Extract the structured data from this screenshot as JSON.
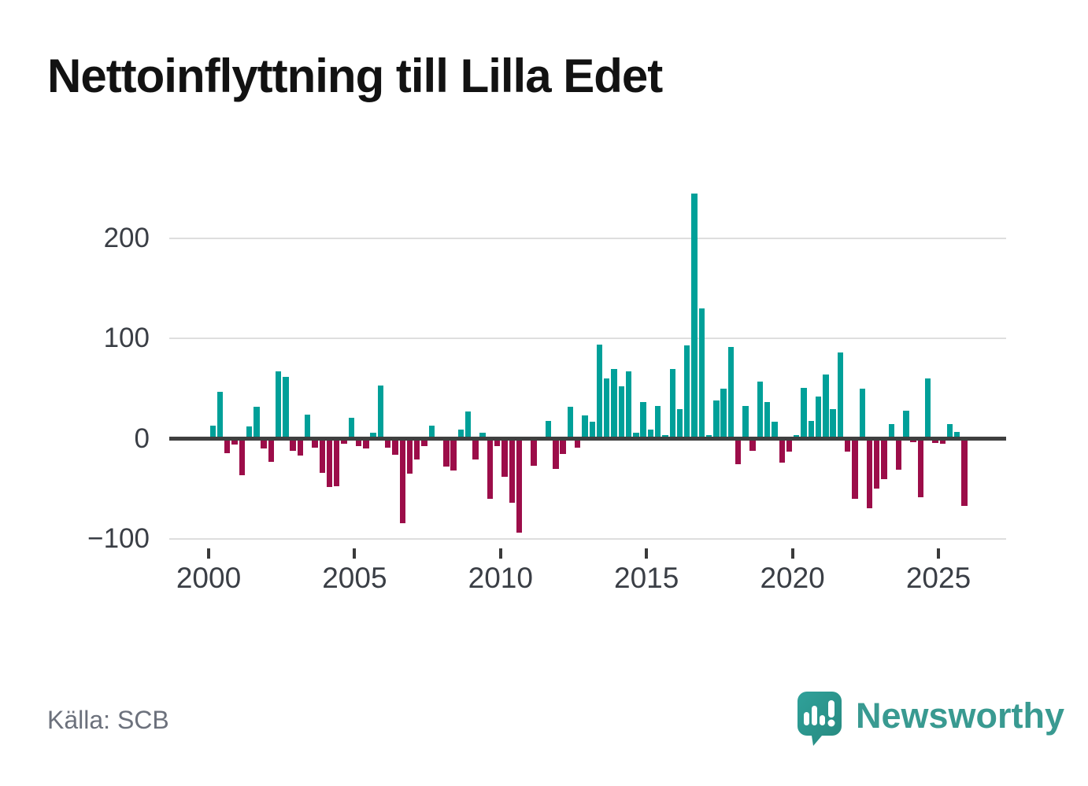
{
  "title": "Nettoinflyttning till Lilla Edet",
  "source": "Källa: SCB",
  "logo": {
    "text": "Newsworthy",
    "badge_icon": "bar-chart-exclamation-speech-bubble"
  },
  "chart_data": {
    "type": "bar",
    "title": "Nettoinflyttning till Lilla Edet",
    "start_year": 2000,
    "frequency": "quarterly",
    "values": [
      13,
      47,
      -14,
      -6,
      -36,
      12,
      32,
      -10,
      -23,
      67,
      62,
      -12,
      -17,
      24,
      -9,
      -34,
      -48,
      -47,
      -5,
      21,
      -7,
      -10,
      6,
      53,
      -9,
      -16,
      -84,
      -35,
      -21,
      -7,
      13,
      0,
      -28,
      -32,
      9,
      27,
      -21,
      6,
      -60,
      -7,
      -38,
      -64,
      -94,
      2,
      -27,
      1,
      18,
      -30,
      -15,
      32,
      -9,
      23,
      17,
      94,
      60,
      70,
      52,
      67,
      6,
      37,
      9,
      33,
      4,
      70,
      30,
      93,
      245,
      130,
      4,
      38,
      50,
      92,
      -25,
      33,
      -12,
      57,
      37,
      17,
      -24,
      -13,
      4,
      51,
      18,
      42,
      64,
      30,
      86,
      -13,
      -60,
      50,
      -69,
      -50,
      -40,
      15,
      -31,
      28,
      -3,
      -58,
      60,
      -4,
      -5,
      15,
      7,
      -67
    ],
    "x_tick_labels": [
      "2000",
      "2005",
      "2010",
      "2015",
      "2020",
      "2025"
    ],
    "y_tick_labels": [
      "200",
      "100",
      "0",
      "−100"
    ],
    "y_tick_values": [
      200,
      100,
      0,
      -100
    ],
    "ylim": [
      -110,
      260
    ],
    "grid": "horizontal-only",
    "legend": "none",
    "positive_color": "#00A099",
    "negative_color": "#9C0D49",
    "axis_color": "#3F3F3F",
    "gridline_color": "#DEDEDE",
    "label_color": "#3A3E45"
  }
}
